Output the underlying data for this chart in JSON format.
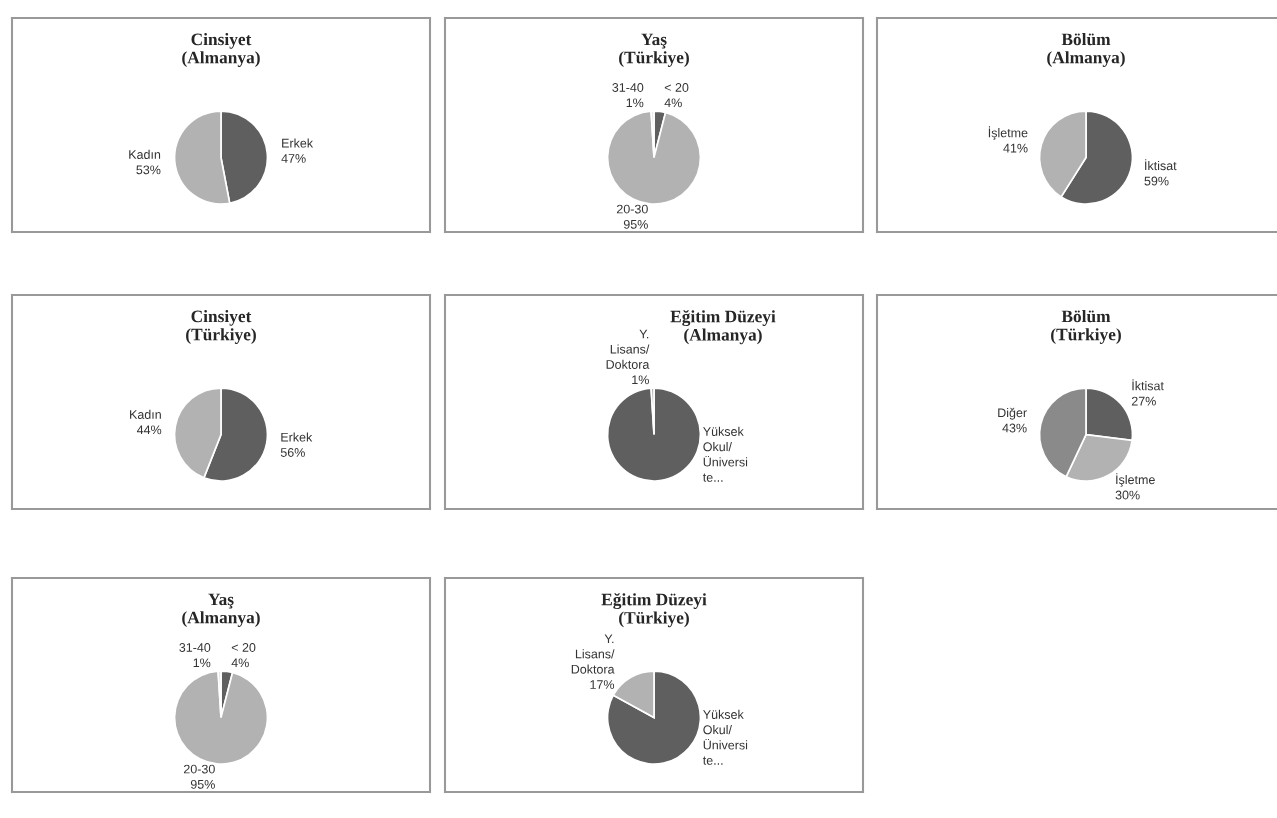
{
  "chart_data": [
    {
      "type": "pie",
      "title": "Cinsiyet\n(Almanya)",
      "categories": [
        "Erkek",
        "Kadın"
      ],
      "values": [
        47,
        53
      ],
      "colors": [
        "#5f5f5f",
        "#b2b2b2"
      ],
      "value_labels": [
        "47%",
        "53%"
      ]
    },
    {
      "type": "pie",
      "title": "Yaş\n(Türkiye)",
      "categories": [
        "< 20",
        "20-30",
        "31-40"
      ],
      "values": [
        4,
        95,
        1
      ],
      "colors": [
        "#5f5f5f",
        "#b2b2b2",
        "#e6e6e6"
      ],
      "value_labels": [
        "4%",
        "95%",
        "1%"
      ]
    },
    {
      "type": "pie",
      "title": "Bölüm\n(Almanya)",
      "categories": [
        "İktisat",
        "İşletme"
      ],
      "values": [
        59,
        41
      ],
      "colors": [
        "#5f5f5f",
        "#b2b2b2"
      ],
      "value_labels": [
        "59%",
        "41%"
      ]
    },
    {
      "type": "pie",
      "title": "Cinsiyet\n(Türkiye)",
      "categories": [
        "Erkek",
        "Kadın"
      ],
      "values": [
        56,
        44
      ],
      "colors": [
        "#5f5f5f",
        "#b2b2b2"
      ],
      "value_labels": [
        "56%",
        "44%"
      ]
    },
    {
      "type": "pie",
      "title": "Eğitim Düzeyi\n(Almanya)",
      "categories": [
        "Yüksek\nOkul/\nÜniversi\nte...",
        "Y.\nLisans/\nDoktora"
      ],
      "values": [
        99,
        1
      ],
      "colors": [
        "#5f5f5f",
        "#b2b2b2"
      ],
      "value_labels": [
        null,
        "1%"
      ]
    },
    {
      "type": "pie",
      "title": "Bölüm\n(Türkiye)",
      "categories": [
        "İktisat",
        "İşletme",
        "Diğer"
      ],
      "values": [
        27,
        30,
        43
      ],
      "colors": [
        "#5f5f5f",
        "#b2b2b2",
        "#8a8a8a"
      ],
      "value_labels": [
        "27%",
        "30%",
        "43%"
      ]
    },
    {
      "type": "pie",
      "title": "Yaş\n(Almanya)",
      "categories": [
        "< 20",
        "20-30",
        "31-40"
      ],
      "values": [
        4,
        95,
        1
      ],
      "colors": [
        "#5f5f5f",
        "#b2b2b2",
        "#e6e6e6"
      ],
      "value_labels": [
        "4%",
        "95%",
        "1%"
      ]
    },
    {
      "type": "pie",
      "title": "Eğitim Düzeyi\n(Türkiye)",
      "categories": [
        "Yüksek\nOkul/\nÜniversi\nte...",
        "Y.\nLisans/\nDoktora"
      ],
      "values": [
        83,
        17
      ],
      "colors": [
        "#5f5f5f",
        "#b2b2b2"
      ],
      "value_labels": [
        null,
        "17%"
      ]
    }
  ]
}
